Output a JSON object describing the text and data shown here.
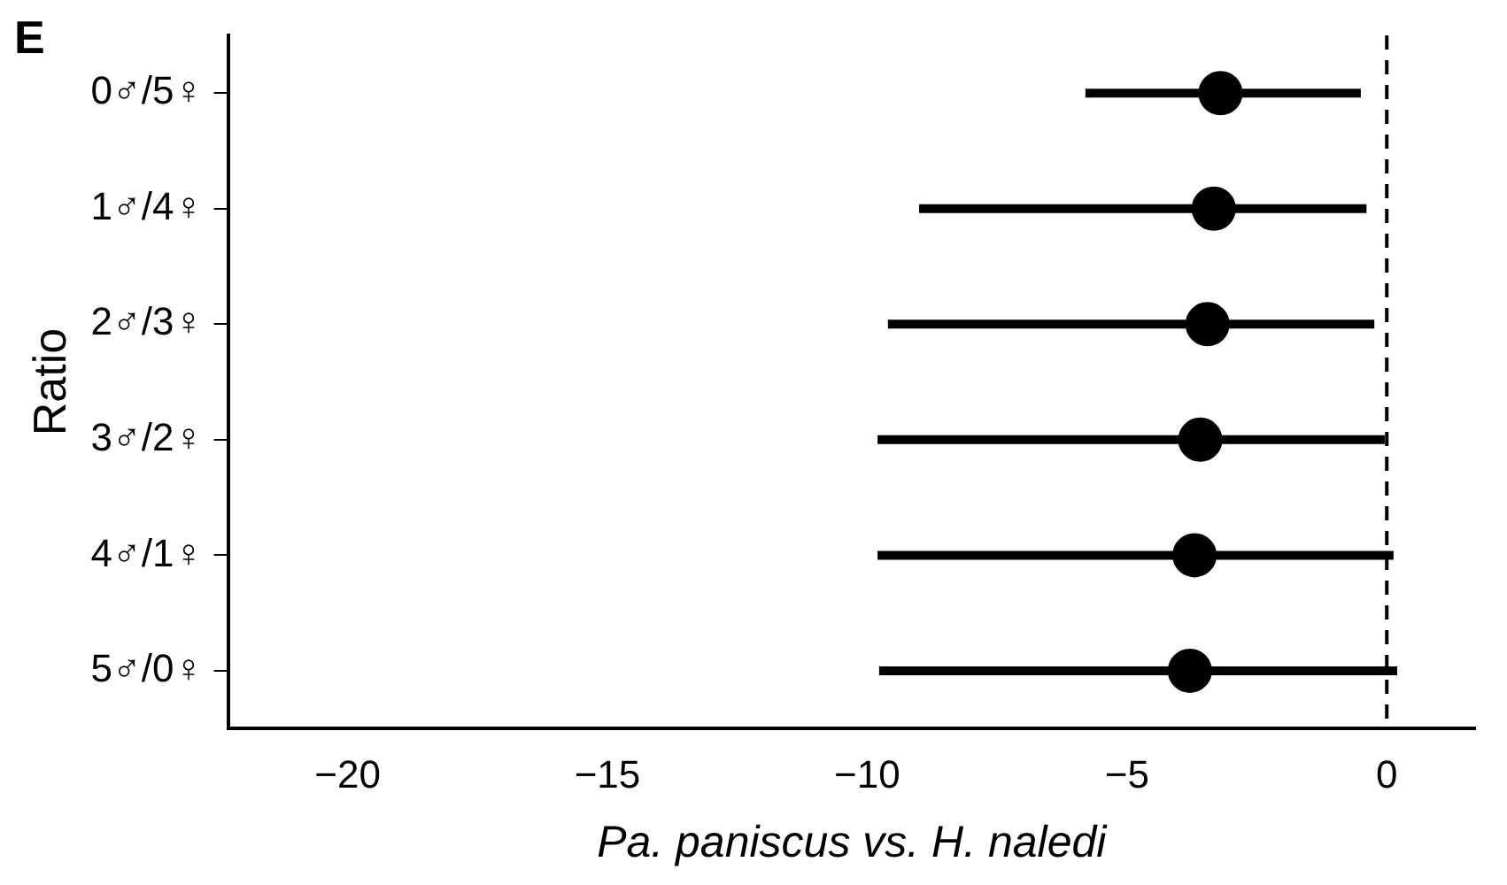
{
  "chart_data": {
    "type": "scatter",
    "orientation": "horizontal",
    "categories": [
      "0♂/5♀",
      "1♂/4♀",
      "2♂/3♀",
      "3♂/2♀",
      "4♂/1♀",
      "5♂/0♀"
    ],
    "values": [
      -3.2,
      -3.33,
      -3.45,
      -3.59,
      -3.7,
      -3.79
    ],
    "errors": [
      [
        -5.8,
        -0.5
      ],
      [
        -9.0,
        -0.39
      ],
      [
        -9.6,
        -0.24
      ],
      [
        -9.8,
        -0.04
      ],
      [
        -9.8,
        0.13
      ],
      [
        -9.77,
        0.2
      ]
    ],
    "color": "#000000",
    "xlim": [
      -22.3,
      1.7
    ],
    "xticks": [
      {
        "value": -20,
        "label": "−20"
      },
      {
        "value": -15,
        "label": "−15"
      },
      {
        "value": -10,
        "label": "−10"
      },
      {
        "value": -5,
        "label": "−5"
      },
      0
    ],
    "xlabel": "Pa. paniscus vs. H. naledi",
    "ylabel": "Ratio",
    "ref_lines": [
      {
        "axis": "x",
        "value": 0,
        "line_style": "dashed",
        "color": "#000000"
      }
    ],
    "annotations": [
      "E"
    ],
    "marker": "circle",
    "grid": false,
    "legend": false
  }
}
